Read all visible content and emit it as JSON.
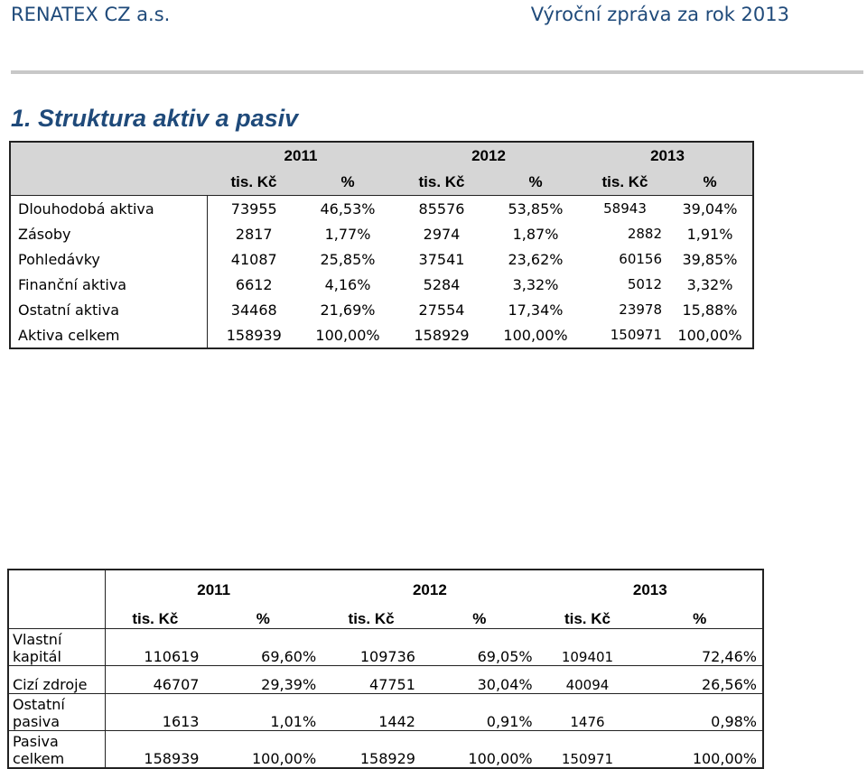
{
  "header": {
    "company": "RENATEX CZ a.s.",
    "report": "Výroční zpráva za rok 2013"
  },
  "section": {
    "title": "1.  Struktura aktiv a pasiv"
  },
  "aktiva": {
    "years": [
      "2011",
      "2012",
      "2013"
    ],
    "units": [
      "tis. Kč",
      "%",
      "tis. Kč",
      "%",
      "tis. Kč",
      "%"
    ],
    "rows": [
      {
        "label": "Dlouhodobá aktiva",
        "v": [
          "73955",
          "46,53%",
          "85576",
          "53,85%",
          "58943",
          "39,04%"
        ]
      },
      {
        "label": "Zásoby",
        "v": [
          "2817",
          "1,77%",
          "2974",
          "1,87%",
          "2882",
          "1,91%"
        ]
      },
      {
        "label": "Pohledávky",
        "v": [
          "41087",
          "25,85%",
          "37541",
          "23,62%",
          "60156",
          "39,85%"
        ]
      },
      {
        "label": "Finanční aktiva",
        "v": [
          "6612",
          "4,16%",
          "5284",
          "3,32%",
          "5012",
          "3,32%"
        ]
      },
      {
        "label": "Ostatní aktiva",
        "v": [
          "34468",
          "21,69%",
          "27554",
          "17,34%",
          "23978",
          "15,88%"
        ]
      },
      {
        "label": "Aktiva celkem",
        "v": [
          "158939",
          "100,00%",
          "158929",
          "100,00%",
          "150971",
          "100,00%"
        ]
      }
    ]
  },
  "pasiva": {
    "years": [
      "2011",
      "2012",
      "2013"
    ],
    "units": [
      "tis. Kč",
      "%",
      "tis. Kč",
      "%",
      "tis. Kč",
      "%"
    ],
    "rows": [
      {
        "label": "Vlastní kapitál",
        "v": [
          "110619",
          "69,60%",
          "109736",
          "69,05%",
          "109401",
          "72,46%"
        ]
      },
      {
        "label": "Cizí zdroje",
        "v": [
          "46707",
          "29,39%",
          "47751",
          "30,04%",
          "40094",
          "26,56%"
        ]
      },
      {
        "label": "Ostatní pasiva",
        "v": [
          "1613",
          "1,01%",
          "1442",
          "0,91%",
          "1476",
          "0,98%"
        ]
      },
      {
        "label": "Pasiva celkem",
        "v": [
          "158939",
          "100,00%",
          "158929",
          "100,00%",
          "150971",
          "100,00%"
        ]
      }
    ]
  }
}
